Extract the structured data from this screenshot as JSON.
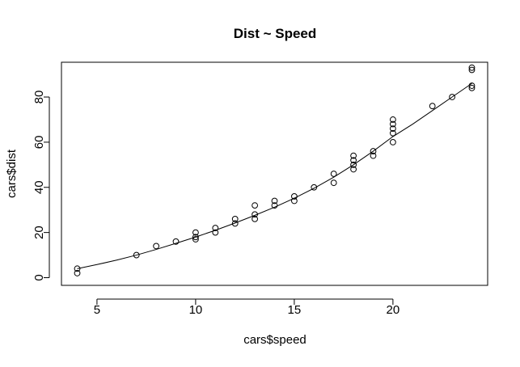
{
  "chart_data": {
    "type": "scatter",
    "title": "Dist ~ Speed",
    "xlabel": "cars$speed",
    "ylabel": "cars$dist",
    "xlim": [
      3.2,
      24.8
    ],
    "ylim": [
      -3.4,
      95.4
    ],
    "xticks": [
      5,
      10,
      15,
      20
    ],
    "yticks": [
      0,
      20,
      40,
      60,
      80
    ],
    "grid": false,
    "legend": "none",
    "points": [
      {
        "x": 4,
        "y": 2
      },
      {
        "x": 4,
        "y": 4
      },
      {
        "x": 7,
        "y": 10
      },
      {
        "x": 8,
        "y": 14
      },
      {
        "x": 9,
        "y": 16
      },
      {
        "x": 10,
        "y": 17
      },
      {
        "x": 10,
        "y": 18
      },
      {
        "x": 10,
        "y": 20
      },
      {
        "x": 11,
        "y": 20
      },
      {
        "x": 11,
        "y": 22
      },
      {
        "x": 12,
        "y": 24
      },
      {
        "x": 12,
        "y": 26
      },
      {
        "x": 13,
        "y": 26
      },
      {
        "x": 13,
        "y": 28
      },
      {
        "x": 13,
        "y": 32
      },
      {
        "x": 14,
        "y": 32
      },
      {
        "x": 14,
        "y": 34
      },
      {
        "x": 15,
        "y": 34
      },
      {
        "x": 15,
        "y": 36
      },
      {
        "x": 16,
        "y": 40
      },
      {
        "x": 17,
        "y": 42
      },
      {
        "x": 17,
        "y": 46
      },
      {
        "x": 18,
        "y": 48
      },
      {
        "x": 18,
        "y": 50
      },
      {
        "x": 18,
        "y": 52
      },
      {
        "x": 18,
        "y": 54
      },
      {
        "x": 19,
        "y": 54
      },
      {
        "x": 19,
        "y": 56
      },
      {
        "x": 20,
        "y": 60
      },
      {
        "x": 20,
        "y": 64
      },
      {
        "x": 20,
        "y": 66
      },
      {
        "x": 20,
        "y": 68
      },
      {
        "x": 20,
        "y": 70
      },
      {
        "x": 22,
        "y": 76
      },
      {
        "x": 23,
        "y": 80
      },
      {
        "x": 24,
        "y": 84
      },
      {
        "x": 24,
        "y": 85
      },
      {
        "x": 24,
        "y": 92
      },
      {
        "x": 24,
        "y": 93
      }
    ],
    "fit_line": {
      "x": [
        4,
        5,
        6,
        7,
        8,
        9,
        10,
        11,
        12,
        13,
        14,
        15,
        16,
        17,
        18,
        19,
        20,
        21,
        22,
        23,
        24
      ],
      "y": [
        4.0,
        5.8,
        7.8,
        10.0,
        12.5,
        15.2,
        18.0,
        21.0,
        24.2,
        27.6,
        31.2,
        35.2,
        39.6,
        44.5,
        50.0,
        56.0,
        62.5,
        68.0,
        74.0,
        80.0,
        86.0
      ]
    }
  }
}
